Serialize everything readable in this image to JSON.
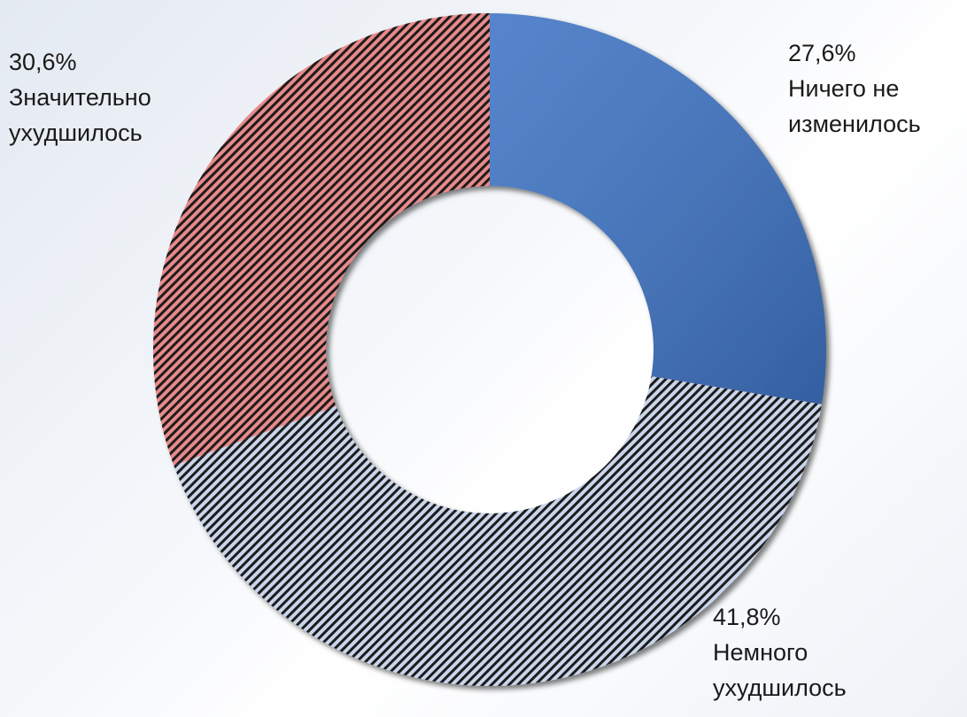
{
  "chart_data": {
    "type": "pie",
    "categories": [
      "Ничего не изменилось",
      "Немного ухудшилось",
      "Значительно ухудшилось"
    ],
    "values": [
      27.6,
      41.8,
      30.6
    ],
    "value_labels": [
      "27,6%",
      "41,8%",
      "30,6%"
    ],
    "colors": [
      "#3f74c4",
      "#c9d5ea",
      "#e8898a"
    ],
    "hole": true
  }
}
